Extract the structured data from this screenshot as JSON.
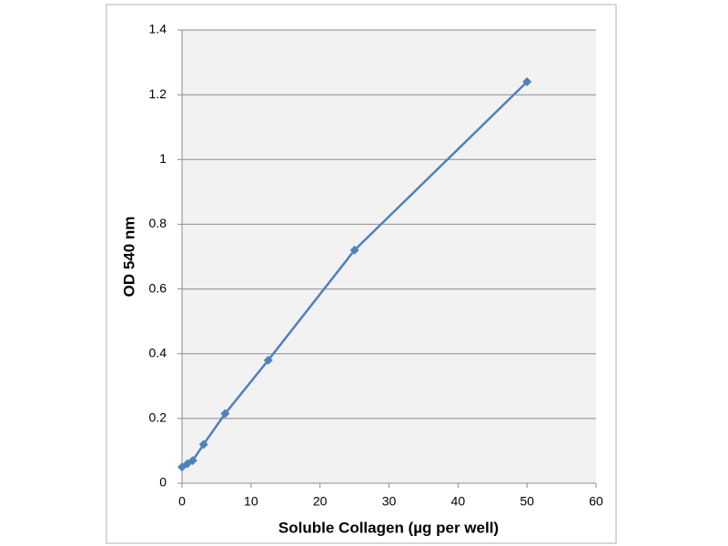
{
  "chart_data": {
    "type": "line",
    "x_label": "Soluble Collagen (µg per well)",
    "y_label": "OD 540 nm",
    "x": [
      0,
      0.78,
      1.56,
      3.125,
      6.25,
      12.5,
      25,
      50
    ],
    "series": [
      {
        "color": "#4f81bd",
        "values": [
          0.05,
          0.06,
          0.07,
          0.12,
          0.215,
          0.38,
          0.72,
          1.24
        ]
      }
    ],
    "xlim": [
      0,
      60
    ],
    "xticks": [
      0,
      10,
      20,
      30,
      40,
      50,
      60
    ],
    "ylim": [
      0,
      1.4
    ],
    "yticks": [
      0,
      0.2,
      0.4,
      0.6,
      0.8,
      1,
      1.2,
      1.4
    ],
    "grid": true
  }
}
